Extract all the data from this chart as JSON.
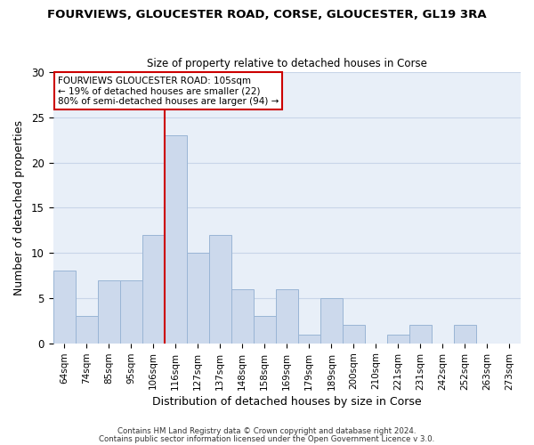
{
  "title1": "FOURVIEWS, GLOUCESTER ROAD, CORSE, GLOUCESTER, GL19 3RA",
  "title2": "Size of property relative to detached houses in Corse",
  "xlabel": "Distribution of detached houses by size in Corse",
  "ylabel": "Number of detached properties",
  "bin_labels": [
    "64sqm",
    "74sqm",
    "85sqm",
    "95sqm",
    "106sqm",
    "116sqm",
    "127sqm",
    "137sqm",
    "148sqm",
    "158sqm",
    "169sqm",
    "179sqm",
    "189sqm",
    "200sqm",
    "210sqm",
    "221sqm",
    "231sqm",
    "242sqm",
    "252sqm",
    "263sqm",
    "273sqm"
  ],
  "bar_heights": [
    8,
    3,
    7,
    7,
    12,
    23,
    10,
    12,
    6,
    3,
    6,
    1,
    5,
    2,
    0,
    1,
    2,
    0,
    2,
    0,
    0
  ],
  "bar_color": "#ccd9ec",
  "bar_edgecolor": "#9ab5d5",
  "vline_x_index": 4,
  "vline_color": "#cc0000",
  "ylim": [
    0,
    30
  ],
  "yticks": [
    0,
    5,
    10,
    15,
    20,
    25,
    30
  ],
  "annotation_text": "FOURVIEWS GLOUCESTER ROAD: 105sqm\n← 19% of detached houses are smaller (22)\n80% of semi-detached houses are larger (94) →",
  "annotation_box_edgecolor": "#cc0000",
  "footer1": "Contains HM Land Registry data © Crown copyright and database right 2024.",
  "footer2": "Contains public sector information licensed under the Open Government Licence v 3.0.",
  "background_color": "#ffffff",
  "axes_facecolor": "#e8eff8",
  "grid_color": "#c8d5e8"
}
